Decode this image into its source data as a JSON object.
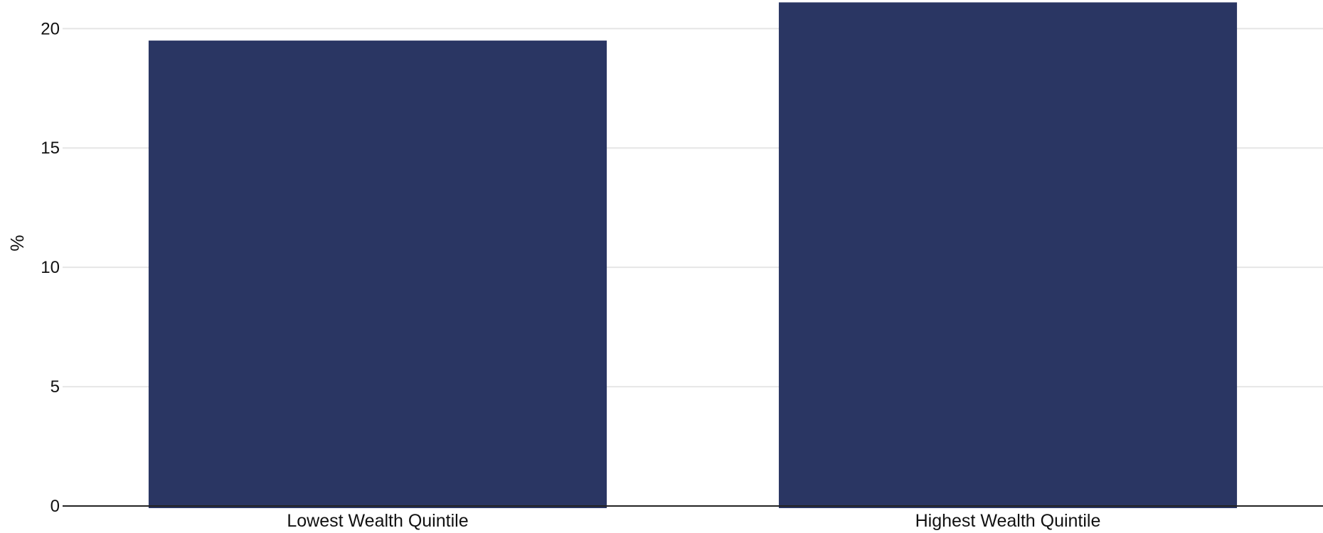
{
  "chart_data": {
    "type": "bar",
    "categories": [
      "Lowest Wealth Quintile",
      "Highest Wealth Quintile"
    ],
    "values": [
      19.5,
      21.1
    ],
    "title": "",
    "xlabel": "",
    "ylabel": "%",
    "ylim": [
      0,
      21.2
    ],
    "yticks": [
      0,
      5,
      10,
      15,
      20
    ],
    "grid": true,
    "bar_color": "#2a3663",
    "grid_color": "#e6e6e6",
    "axis_color": "#222222"
  }
}
